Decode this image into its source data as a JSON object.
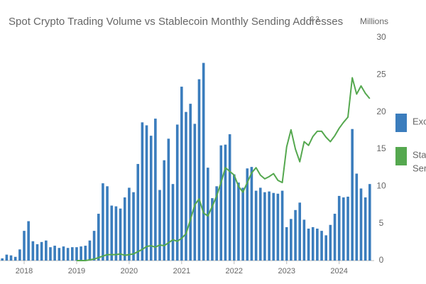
{
  "chart_data": {
    "type": "bar_line",
    "title": "Spot Crypto Trading Volume vs Stablecoin Monthly Sending Addresses",
    "title_footnotes": "2 3",
    "axis_label": "Millions",
    "x": [
      2017.583,
      2017.667,
      2017.75,
      2017.833,
      2017.917,
      2018,
      2018.083,
      2018.167,
      2018.25,
      2018.333,
      2018.417,
      2018.5,
      2018.583,
      2018.667,
      2018.75,
      2018.833,
      2018.917,
      2019,
      2019.083,
      2019.167,
      2019.25,
      2019.333,
      2019.417,
      2019.5,
      2019.583,
      2019.667,
      2019.75,
      2019.833,
      2019.917,
      2020,
      2020.083,
      2020.167,
      2020.25,
      2020.333,
      2020.417,
      2020.5,
      2020.583,
      2020.667,
      2020.75,
      2020.833,
      2020.917,
      2021,
      2021.083,
      2021.167,
      2021.25,
      2021.333,
      2021.417,
      2021.5,
      2021.583,
      2021.667,
      2021.75,
      2021.833,
      2021.917,
      2022,
      2022.083,
      2022.167,
      2022.25,
      2022.333,
      2022.417,
      2022.5,
      2022.583,
      2022.667,
      2022.75,
      2022.833,
      2022.917,
      2023,
      2023.083,
      2023.167,
      2023.25,
      2023.333,
      2023.417,
      2023.5,
      2023.583,
      2023.667,
      2023.75,
      2023.833,
      2023.917,
      2024,
      2024.083,
      2024.167,
      2024.25,
      2024.333,
      2024.417,
      2024.5,
      2024.583
    ],
    "series": [
      {
        "name": "Excl",
        "kind": "bar",
        "color": "#3b7dbd",
        "values": [
          0.3,
          0.8,
          0.7,
          0.5,
          1.5,
          4.0,
          5.3,
          2.6,
          2.2,
          2.5,
          2.7,
          1.8,
          2.0,
          1.7,
          1.9,
          1.7,
          1.8,
          1.8,
          1.9,
          2.0,
          2.7,
          4.0,
          6.3,
          10.4,
          10.0,
          7.4,
          7.3,
          7.0,
          8.5,
          9.8,
          9.2,
          13.0,
          18.6,
          18.2,
          16.8,
          19.1,
          9.5,
          13.5,
          16.4,
          10.3,
          18.3,
          23.4,
          20.0,
          21.1,
          18.4,
          24.4,
          26.6,
          12.5,
          8.4,
          10.0,
          15.5,
          15.6,
          17.0,
          11.6,
          10.5,
          9.8,
          12.4,
          12.6,
          9.4,
          9.8,
          9.2,
          9.3,
          9.1,
          9.0,
          9.4,
          4.5,
          5.6,
          6.8,
          7.8,
          5.5,
          4.3,
          4.5,
          4.3,
          4.0,
          3.4,
          4.8,
          6.3,
          8.7,
          8.5,
          8.6,
          17.7,
          11.7,
          9.7,
          8.5,
          10.3
        ]
      },
      {
        "name": "Stab",
        "name_line2": "Sen",
        "kind": "line",
        "color": "#55a84f",
        "values": [
          null,
          null,
          null,
          null,
          null,
          null,
          null,
          null,
          null,
          null,
          null,
          null,
          null,
          null,
          null,
          null,
          null,
          0,
          0,
          0,
          0.1,
          0.2,
          0.4,
          0.6,
          0.8,
          0.8,
          0.8,
          0.9,
          0.7,
          0.8,
          0.9,
          1.2,
          1.5,
          1.9,
          2.0,
          1.8,
          2.1,
          2.0,
          2.4,
          2.8,
          2.6,
          3.0,
          3.6,
          5.5,
          7.5,
          8.3,
          6.4,
          6.0,
          7.3,
          8.7,
          10.5,
          12.5,
          12.0,
          11.5,
          10.0,
          9.2,
          10.5,
          11.8,
          12.5,
          11.5,
          11.0,
          11.3,
          11.7,
          10.8,
          10.5,
          15.3,
          17.6,
          15.0,
          13.3,
          16.0,
          15.5,
          16.7,
          17.4,
          17.4,
          16.6,
          16.0,
          16.8,
          17.8,
          18.6,
          19.3,
          24.6,
          22.4,
          23.5,
          22.5,
          21.8
        ]
      }
    ],
    "xlim": [
      2017.54,
      2024.64
    ],
    "xticks": [
      2018,
      2019,
      2020,
      2021,
      2022,
      2023,
      2024
    ],
    "ylim": [
      0,
      30
    ],
    "yticks": [
      0,
      5,
      10,
      15,
      20,
      25,
      30
    ],
    "grid": false
  }
}
